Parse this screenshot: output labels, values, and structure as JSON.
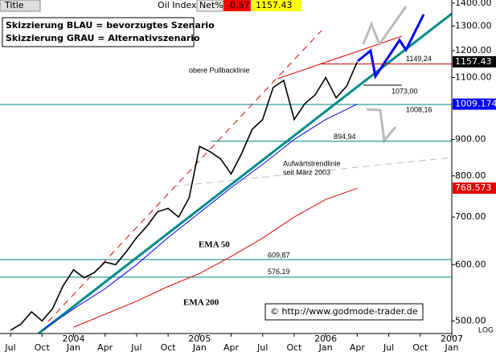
{
  "chart_data": {
    "type": "line",
    "title": "Title",
    "net_label": "Net%",
    "net_value": -0.67,
    "log": true,
    "scale_label": "LOG",
    "xlim": [
      "2003-06",
      "2007-01"
    ],
    "xticks": [
      {
        "value": "2003-07",
        "label": "Jul"
      },
      {
        "value": "2003-10",
        "label": "Oct"
      },
      {
        "value": "2004-01",
        "label": "Jan"
      },
      {
        "value": "2004-04",
        "label": "Apr"
      },
      {
        "value": "2004-07",
        "label": "Jul"
      },
      {
        "value": "2004-10",
        "label": "Oct"
      },
      {
        "value": "2005-01",
        "label": "Jan"
      },
      {
        "value": "2005-04",
        "label": "Apr"
      },
      {
        "value": "2005-07",
        "label": "Jul"
      },
      {
        "value": "2005-10",
        "label": "Oct"
      },
      {
        "value": "2006-01",
        "label": "Jan"
      },
      {
        "value": "2006-04",
        "label": "Apr"
      },
      {
        "value": "2006-07",
        "label": "Jul"
      },
      {
        "value": "2006-10",
        "label": "Oct"
      },
      {
        "value": "2007-01",
        "label": "Jan"
      }
    ],
    "xyears": [
      {
        "value": "2004-01",
        "label": "2004"
      },
      {
        "value": "2005-01",
        "label": "2005"
      },
      {
        "value": "2006-01",
        "label": "2006"
      },
      {
        "value": "2007-01",
        "label": "2007"
      }
    ],
    "ylim": [
      480,
      1414
    ],
    "yticks": [
      {
        "value": 1400,
        "label": "1400.00"
      },
      {
        "value": 1300,
        "label": "1300.00"
      },
      {
        "value": 1200,
        "label": "1200.00"
      },
      {
        "value": 1100,
        "label": "1100.00"
      },
      {
        "value": 1000,
        "label": "1000.00"
      },
      {
        "value": 900,
        "label": "900.00"
      },
      {
        "value": 800,
        "label": "800.00"
      },
      {
        "value": 700,
        "label": "700.00"
      },
      {
        "value": 600,
        "label": "600.00"
      },
      {
        "value": 500,
        "label": "500.00"
      }
    ],
    "series": [
      {
        "name": "Oil Index",
        "color": "#000000",
        "x": [
          "2003-07",
          "2003-08",
          "2003-09",
          "2003-10",
          "2003-11",
          "2003-12",
          "2004-01",
          "2004-02",
          "2004-03",
          "2004-04",
          "2004-05",
          "2004-06",
          "2004-07",
          "2004-08",
          "2004-09",
          "2004-10",
          "2004-11",
          "2004-12",
          "2005-01",
          "2005-02",
          "2005-03",
          "2005-04",
          "2005-05",
          "2005-06",
          "2005-07",
          "2005-08",
          "2005-09",
          "2005-10",
          "2005-11",
          "2005-12",
          "2006-01",
          "2006-02",
          "2006-03",
          "2006-04"
        ],
        "values": [
          485,
          495,
          515,
          500,
          520,
          560,
          590,
          575,
          585,
          605,
          600,
          625,
          655,
          680,
          712,
          720,
          700,
          745,
          880,
          865,
          845,
          805,
          860,
          930,
          960,
          1065,
          1090,
          960,
          1010,
          1040,
          1100,
          1030,
          1070,
          1157.43
        ]
      },
      {
        "name": "EMA 50",
        "color": "#0000ff",
        "x": [
          "2003-10",
          "2004-01",
          "2004-04",
          "2004-07",
          "2004-10",
          "2005-01",
          "2005-04",
          "2005-07",
          "2005-10",
          "2006-01",
          "2006-04"
        ],
        "values": [
          485,
          520,
          555,
          600,
          655,
          710,
          770,
          830,
          900,
          960,
          1009.174
        ]
      },
      {
        "name": "EMA 200",
        "color": "#e00000",
        "x": [
          "2004-01",
          "2004-04",
          "2004-07",
          "2004-10",
          "2005-01",
          "2005-04",
          "2005-07",
          "2005-10",
          "2006-01",
          "2006-04"
        ],
        "values": [
          490,
          511,
          533,
          559,
          583,
          616,
          654,
          700,
          741,
          768.573
        ]
      }
    ],
    "levels": {
      "values": [
        1149.24,
        1073.0,
        1008.16,
        894.94,
        609.87,
        576.19
      ],
      "value_labels": [
        "1149,24",
        "1073,00",
        "1008,16",
        "894,94",
        "609,87",
        "576,19"
      ],
      "colors": [
        "#cc0000",
        "#000000",
        "#008080",
        "#008080",
        "#008080",
        "#008080"
      ]
    },
    "legend": [
      "Skizzierung BLAU = bevorzugtes Szenario",
      "Skizzierung GRAU = Alternativszenario"
    ],
    "annotations": [
      "obere Pullbacklinie",
      "Aufwärtstrendlinie",
      "seit März 2003"
    ],
    "source": "© http://www.godmode-trader.de"
  }
}
